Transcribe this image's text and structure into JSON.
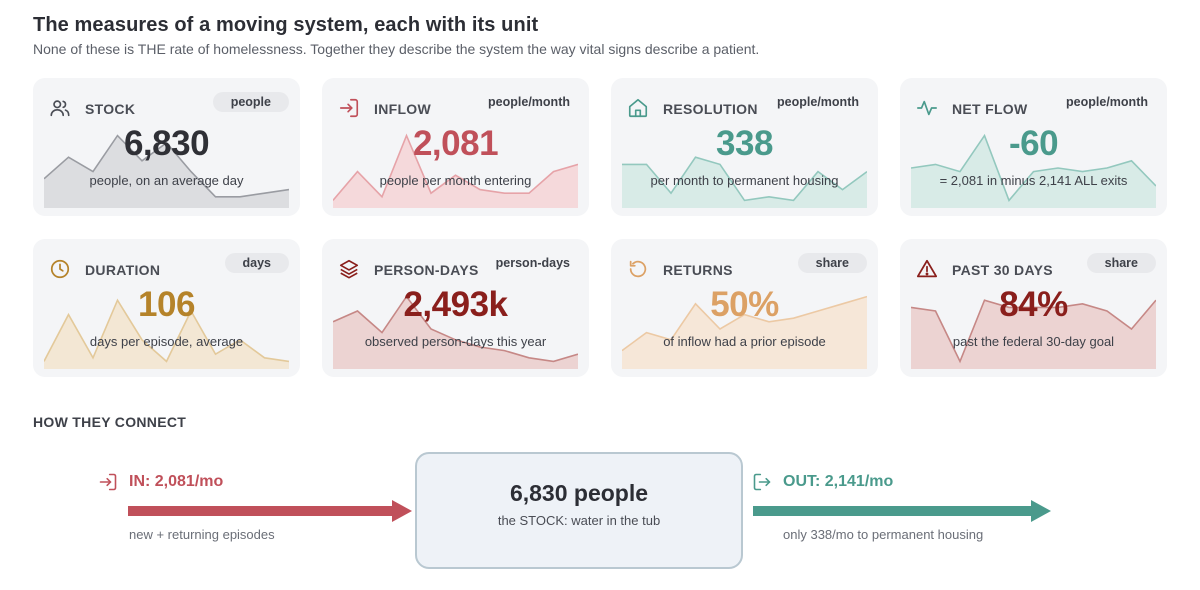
{
  "header": {
    "title": "The measures of a moving system, each with its unit",
    "subtitle": "None of these is THE rate of homelessness. Together they describe the system the way vital signs describe a patient."
  },
  "cards": [
    {
      "label": "STOCK",
      "unit": "people",
      "value": "6,830",
      "desc": "people, on an average day",
      "icon": "people-icon",
      "color": "#2f3036",
      "spark_color": "#9a9ca2",
      "spark_fill": "#dcdde0",
      "spark": [
        0.35,
        0.65,
        0.45,
        0.95,
        0.6,
        0.85,
        0.45,
        0.1,
        0.1,
        0.15,
        0.2
      ]
    },
    {
      "label": "INFLOW",
      "unit": "people/month",
      "value": "2,081",
      "desc": "people per month entering",
      "icon": "enter-icon",
      "color": "#c0505a",
      "spark_color": "#e6a3a8",
      "spark_fill": "#f5d9db",
      "spark": [
        0.05,
        0.45,
        0.1,
        0.95,
        0.15,
        0.4,
        0.2,
        0.15,
        0.15,
        0.45,
        0.55
      ]
    },
    {
      "label": "RESOLUTION",
      "unit": "people/month",
      "value": "338",
      "desc": "per month to permanent housing",
      "icon": "home-icon",
      "color": "#4a9a8c",
      "spark_color": "#93c8be",
      "spark_fill": "#d8ebe7",
      "spark": [
        0.55,
        0.55,
        0.15,
        0.65,
        0.55,
        0.05,
        0.1,
        0.05,
        0.45,
        0.2,
        0.45
      ]
    },
    {
      "label": "NET FLOW",
      "unit": "people/month",
      "value": "-60",
      "desc": "= 2,081 in minus 2,141 ALL exits",
      "icon": "pulse-icon",
      "color": "#4a9a8c",
      "spark_color": "#93c8be",
      "spark_fill": "#d8ebe7",
      "spark": [
        0.5,
        0.55,
        0.45,
        0.95,
        0.05,
        0.45,
        0.5,
        0.45,
        0.5,
        0.6,
        0.25
      ]
    },
    {
      "label": "DURATION",
      "unit": "days",
      "value": "106",
      "desc": "days per episode, average",
      "icon": "clock-icon",
      "color": "#b5832a",
      "spark_color": "#e3c99a",
      "spark_fill": "#f3e7d4",
      "spark": [
        0.05,
        0.7,
        0.1,
        0.9,
        0.35,
        0.05,
        0.75,
        0.15,
        0.35,
        0.1,
        0.05
      ]
    },
    {
      "label": "PERSON-DAYS",
      "unit": "person-days",
      "value": "2,493k",
      "desc": "observed person-days this year",
      "icon": "layers-icon",
      "color": "#8a1f1c",
      "spark_color": "#c68886",
      "spark_fill": "#ecd3d2",
      "spark": [
        0.6,
        0.75,
        0.45,
        0.95,
        0.5,
        0.35,
        0.25,
        0.2,
        0.1,
        0.05,
        0.15
      ]
    },
    {
      "label": "RETURNS",
      "unit": "share",
      "value": "50%",
      "desc": "of inflow had a prior episode",
      "icon": "return-icon",
      "color": "#dca165",
      "spark_color": "#ecc9a4",
      "spark_fill": "#f6e7d8",
      "spark": [
        0.2,
        0.45,
        0.35,
        0.85,
        0.5,
        0.7,
        0.6,
        0.65,
        0.75,
        0.85,
        0.95
      ]
    },
    {
      "label": "PAST 30 DAYS",
      "unit": "share",
      "value": "84%",
      "desc": "past the federal 30-day goal",
      "icon": "warning-icon",
      "color": "#8a1f1c",
      "spark_color": "#c68886",
      "spark_fill": "#ecd3d2",
      "spark": [
        0.8,
        0.75,
        0.05,
        0.9,
        0.8,
        0.8,
        0.8,
        0.85,
        0.75,
        0.5,
        0.9
      ]
    }
  ],
  "connect": {
    "heading": "HOW THEY CONNECT",
    "in_label": "IN: 2,081/mo",
    "in_sub": "new + returning episodes",
    "in_color": "#c0505a",
    "stock_value": "6,830 people",
    "stock_sub": "the STOCK: water in the tub",
    "out_label": "OUT: 2,141/mo",
    "out_sub": "only 338/mo to permanent housing",
    "out_color": "#4a9a8c"
  }
}
